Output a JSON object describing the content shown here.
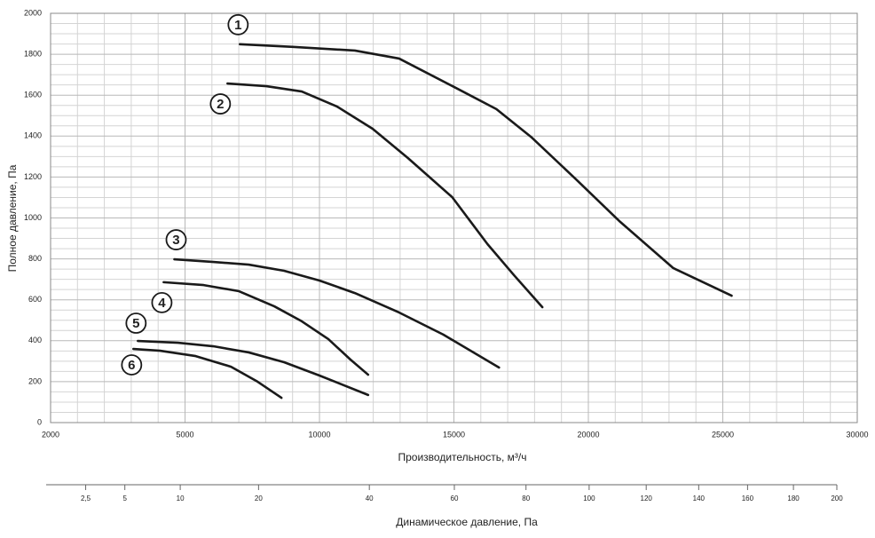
{
  "chart_data": {
    "type": "line",
    "ylabel": "Полное давление, Па",
    "xlabel": "Производительность, м³/ч",
    "x2label": "Динамическое давление, Па",
    "xlim": [
      2000,
      30000
    ],
    "xticks": [
      2000,
      5000,
      10000,
      15000,
      20000,
      25000,
      30000
    ],
    "xgrid": [
      2600,
      3200,
      3800,
      4400,
      6000,
      7000,
      8000,
      9000,
      11000,
      12000,
      13000,
      14000,
      16000,
      17000,
      18000,
      19000,
      21000,
      22000,
      23000,
      24000,
      26000,
      27000,
      28000,
      29000
    ],
    "ylim": [
      0,
      2000
    ],
    "yticks": [
      0,
      200,
      400,
      600,
      800,
      1000,
      1200,
      1400,
      1600,
      1800,
      2000
    ],
    "ygrid": [
      50,
      100,
      150,
      250,
      300,
      350,
      450,
      500,
      550,
      650,
      700,
      750,
      850,
      900,
      950,
      1050,
      1100,
      1150,
      1250,
      1300,
      1350,
      1450,
      1500,
      1550,
      1650,
      1700,
      1750,
      1850,
      1900,
      1950
    ],
    "grid": true,
    "x2lim": [
      0,
      200
    ],
    "x2scale": "sqrt",
    "x2ticks": [
      {
        "value": 2.5,
        "label": "2,5"
      },
      5,
      10,
      20,
      40,
      60,
      80,
      100,
      120,
      140,
      160,
      180,
      200
    ],
    "series": [
      {
        "name": "1",
        "color": "#1a1a1a",
        "x": [
          7040,
          9013,
          11316,
          12961,
          14934,
          16579,
          17895,
          19539,
          21184,
          23158,
          25329
        ],
        "values": [
          1849,
          1836,
          1818,
          1779,
          1645,
          1532,
          1393,
          1189,
          981,
          755,
          620
        ]
      },
      {
        "name": "2",
        "color": "#1a1a1a",
        "x": [
          6579,
          8026,
          9342,
          10658,
          11974,
          13289,
          14934,
          16250,
          17237,
          18289
        ],
        "values": [
          1657,
          1644,
          1618,
          1544,
          1436,
          1293,
          1102,
          872,
          720,
          564
        ]
      },
      {
        "name": "3",
        "color": "#1a1a1a",
        "x": [
          4762,
          6053,
          7368,
          8684,
          10000,
          11316,
          12961,
          14605,
          16678
        ],
        "values": [
          798,
          785,
          772,
          742,
          694,
          633,
          538,
          430,
          269
        ]
      },
      {
        "name": "4",
        "color": "#1a1a1a",
        "x": [
          4523,
          5691,
          7007,
          8322,
          9342,
          10329,
          11151,
          11809
        ],
        "values": [
          686,
          672,
          642,
          568,
          495,
          408,
          308,
          234
        ]
      },
      {
        "name": "5",
        "color": "#1a1a1a",
        "x": [
          3947,
          4841,
          6053,
          7368,
          8684,
          10000,
          11809
        ],
        "values": [
          399,
          390,
          373,
          343,
          295,
          230,
          135
        ]
      },
      {
        "name": "6",
        "color": "#1a1a1a",
        "x": [
          3848,
          4444,
          5395,
          6711,
          7697,
          8586
        ],
        "values": [
          360,
          351,
          325,
          273,
          200,
          121
        ]
      }
    ]
  }
}
